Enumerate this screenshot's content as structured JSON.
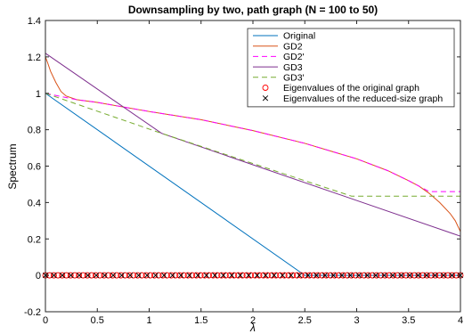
{
  "chart_data": {
    "type": "line",
    "title": "Downsampling by two, path graph (N = 100 to 50)",
    "xlabel": "λ",
    "ylabel": "Spectrum",
    "xlim": [
      0,
      4
    ],
    "ylim": [
      -0.2,
      1.4
    ],
    "x_ticks": [
      "0",
      "0.5",
      "1",
      "1.5",
      "2",
      "2.5",
      "3",
      "3.5",
      "4"
    ],
    "y_ticks": [
      "-0.2",
      "0",
      "0.2",
      "0.4",
      "0.6",
      "0.8",
      "1",
      "1.2",
      "1.4"
    ],
    "legend_position": "top-right",
    "series": [
      {
        "name": "Original",
        "color": "#0072BD",
        "dash": "solid",
        "points": [
          [
            0,
            1.0
          ],
          [
            2.5,
            0.0
          ],
          [
            4,
            0.0
          ]
        ]
      },
      {
        "name": "GD2",
        "color": "#D95319",
        "dash": "solid",
        "points": [
          [
            0,
            1.2
          ],
          [
            0.02,
            1.17
          ],
          [
            0.05,
            1.12
          ],
          [
            0.1,
            1.06
          ],
          [
            0.15,
            1.01
          ],
          [
            0.2,
            0.985
          ],
          [
            0.3,
            0.965
          ],
          [
            0.5,
            0.95
          ],
          [
            1.0,
            0.9
          ],
          [
            1.5,
            0.855
          ],
          [
            2.0,
            0.795
          ],
          [
            2.5,
            0.725
          ],
          [
            3.0,
            0.64
          ],
          [
            3.3,
            0.575
          ],
          [
            3.5,
            0.52
          ],
          [
            3.6,
            0.49
          ],
          [
            3.7,
            0.45
          ],
          [
            3.8,
            0.4
          ],
          [
            3.9,
            0.34
          ],
          [
            3.95,
            0.3
          ],
          [
            4.0,
            0.24
          ]
        ]
      },
      {
        "name": "GD2'",
        "color": "#FF00FF",
        "dash": "dashed",
        "points": [
          [
            0,
            1.0
          ],
          [
            0.3,
            0.965
          ],
          [
            0.5,
            0.95
          ],
          [
            1.0,
            0.9
          ],
          [
            1.5,
            0.855
          ],
          [
            2.0,
            0.795
          ],
          [
            2.5,
            0.725
          ],
          [
            3.0,
            0.64
          ],
          [
            3.3,
            0.575
          ],
          [
            3.5,
            0.52
          ],
          [
            3.6,
            0.49
          ],
          [
            3.7,
            0.46
          ],
          [
            4.0,
            0.46
          ]
        ]
      },
      {
        "name": "GD3",
        "color": "#7E2F8E",
        "dash": "solid",
        "points": [
          [
            0,
            1.22
          ],
          [
            1.12,
            0.78
          ],
          [
            4.0,
            0.215
          ]
        ]
      },
      {
        "name": "GD3'",
        "color": "#77AC30",
        "dash": "dashed",
        "points": [
          [
            0,
            1.0
          ],
          [
            1.12,
            0.78
          ],
          [
            2.95,
            0.435
          ],
          [
            4.0,
            0.435
          ]
        ]
      }
    ],
    "scatter": [
      {
        "name": "Eigenvalues of the original graph",
        "marker": "o",
        "color": "#FF0000",
        "y": 0,
        "x_from": 0,
        "x_to": 4,
        "count": 100
      },
      {
        "name": "Eigenvalues of the reduced-size graph",
        "marker": "x",
        "color": "#000000",
        "y": 0,
        "x_from": 0,
        "x_to": 4,
        "count": 50
      }
    ]
  }
}
